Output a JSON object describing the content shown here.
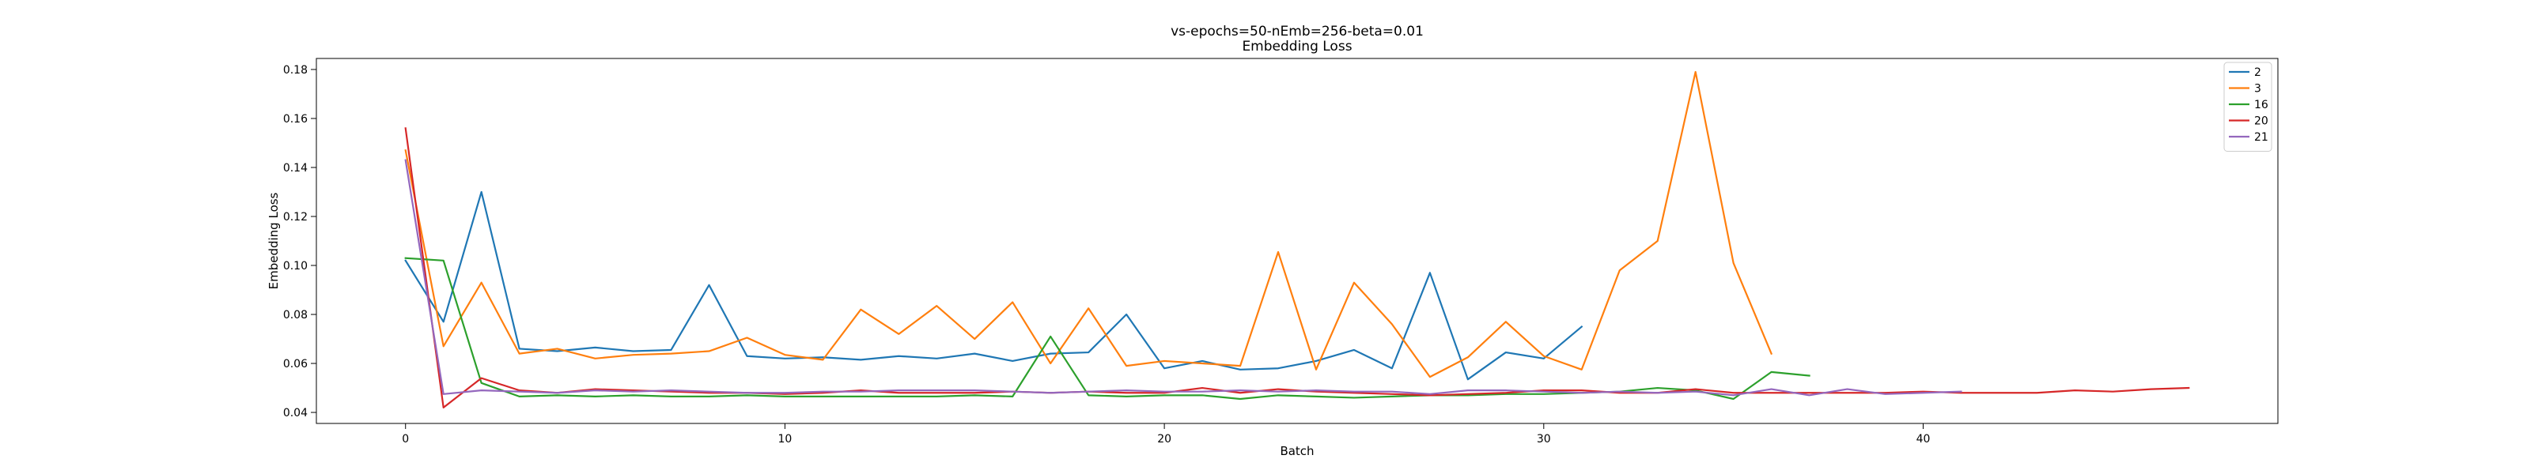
{
  "chart_data": {
    "type": "line",
    "title": "vs-epochs=50-nEmb=256-beta=0.01",
    "subtitle": "Embedding Loss",
    "xlabel": "Batch",
    "ylabel": "Embedding Loss",
    "xlim": [
      -2.35,
      49.35
    ],
    "ylim": [
      0.0355,
      0.1845
    ],
    "xticks": [
      0,
      10,
      20,
      30,
      40
    ],
    "yticks": [
      0.04,
      0.06,
      0.08,
      0.1,
      0.12,
      0.14,
      0.16,
      0.18
    ],
    "grid": false,
    "legend_position": "top-right",
    "series": [
      {
        "name": "2",
        "color": "#1f77b4",
        "x": [
          0,
          1,
          2,
          3,
          4,
          5,
          6,
          7,
          8,
          9,
          10,
          11,
          12,
          13,
          14,
          15,
          16,
          17,
          18,
          19,
          20,
          21,
          22,
          23,
          24,
          25,
          26,
          27,
          28,
          29,
          30,
          31
        ],
        "values": [
          0.102,
          0.077,
          0.13,
          0.066,
          0.065,
          0.0665,
          0.065,
          0.0655,
          0.092,
          0.063,
          0.062,
          0.0625,
          0.0615,
          0.063,
          0.062,
          0.064,
          0.061,
          0.064,
          0.0645,
          0.08,
          0.058,
          0.061,
          0.0575,
          0.058,
          0.061,
          0.0655,
          0.058,
          0.097,
          0.0535,
          0.0645,
          0.062,
          0.075
        ]
      },
      {
        "name": "3",
        "color": "#ff7f0e",
        "x": [
          0,
          1,
          2,
          3,
          4,
          5,
          6,
          7,
          8,
          9,
          10,
          11,
          12,
          13,
          14,
          15,
          16,
          17,
          18,
          19,
          20,
          21,
          22,
          23,
          24,
          25,
          26,
          27,
          28,
          29,
          30,
          31,
          32,
          33,
          34,
          35,
          36
        ],
        "values": [
          0.147,
          0.067,
          0.093,
          0.064,
          0.066,
          0.062,
          0.0635,
          0.064,
          0.065,
          0.0705,
          0.0635,
          0.0615,
          0.082,
          0.072,
          0.0835,
          0.07,
          0.085,
          0.06,
          0.0825,
          0.059,
          0.061,
          0.06,
          0.059,
          0.1055,
          0.0575,
          0.093,
          0.076,
          0.0545,
          0.0625,
          0.077,
          0.063,
          0.0575,
          0.098,
          0.11,
          0.179,
          0.101,
          0.064
        ]
      },
      {
        "name": "16",
        "color": "#2ca02c",
        "x": [
          0,
          1,
          2,
          3,
          4,
          5,
          6,
          7,
          8,
          9,
          10,
          11,
          12,
          13,
          14,
          15,
          16,
          17,
          18,
          19,
          20,
          21,
          22,
          23,
          24,
          25,
          26,
          27,
          28,
          29,
          30,
          31,
          32,
          33,
          34,
          35,
          36,
          37
        ],
        "values": [
          0.103,
          0.102,
          0.052,
          0.0465,
          0.047,
          0.0465,
          0.047,
          0.0465,
          0.0465,
          0.047,
          0.0465,
          0.0465,
          0.0465,
          0.0465,
          0.0465,
          0.047,
          0.0465,
          0.071,
          0.047,
          0.0465,
          0.047,
          0.047,
          0.0455,
          0.047,
          0.0465,
          0.046,
          0.0465,
          0.047,
          0.047,
          0.0475,
          0.0475,
          0.048,
          0.0485,
          0.05,
          0.049,
          0.0455,
          0.0565,
          0.055
        ]
      },
      {
        "name": "20",
        "color": "#d62728",
        "x": [
          0,
          1,
          2,
          3,
          4,
          5,
          6,
          7,
          8,
          9,
          10,
          11,
          12,
          13,
          14,
          15,
          16,
          17,
          18,
          19,
          20,
          21,
          22,
          23,
          24,
          25,
          26,
          27,
          28,
          29,
          30,
          31,
          32,
          33,
          34,
          35,
          36,
          37,
          38,
          39,
          40,
          41,
          42,
          43,
          44,
          45,
          46,
          47
        ],
        "values": [
          0.156,
          0.042,
          0.054,
          0.049,
          0.048,
          0.0495,
          0.049,
          0.0485,
          0.048,
          0.048,
          0.0475,
          0.048,
          0.049,
          0.048,
          0.048,
          0.048,
          0.0485,
          0.048,
          0.0485,
          0.048,
          0.048,
          0.05,
          0.048,
          0.0495,
          0.0485,
          0.048,
          0.0475,
          0.047,
          0.0475,
          0.048,
          0.049,
          0.049,
          0.048,
          0.048,
          0.0495,
          0.048,
          0.048,
          0.048,
          0.048,
          0.048,
          0.0485,
          0.048,
          0.048,
          0.048,
          0.049,
          0.0485,
          0.0495,
          0.05
        ]
      },
      {
        "name": "21",
        "color": "#9467bd",
        "x": [
          0,
          1,
          2,
          3,
          4,
          5,
          6,
          7,
          8,
          9,
          10,
          11,
          12,
          13,
          14,
          15,
          16,
          17,
          18,
          19,
          20,
          21,
          22,
          23,
          24,
          25,
          26,
          27,
          28,
          29,
          30,
          31,
          32,
          33,
          34,
          35,
          36,
          37,
          38,
          39,
          40,
          41
        ],
        "values": [
          0.143,
          0.0475,
          0.049,
          0.0485,
          0.048,
          0.049,
          0.0485,
          0.049,
          0.0485,
          0.048,
          0.048,
          0.0485,
          0.0485,
          0.049,
          0.049,
          0.049,
          0.0485,
          0.048,
          0.0485,
          0.049,
          0.0485,
          0.0485,
          0.049,
          0.0485,
          0.049,
          0.0485,
          0.0485,
          0.0475,
          0.049,
          0.049,
          0.0485,
          0.048,
          0.0485,
          0.048,
          0.0485,
          0.047,
          0.0495,
          0.047,
          0.0495,
          0.0475,
          0.048,
          0.0485
        ]
      }
    ]
  }
}
